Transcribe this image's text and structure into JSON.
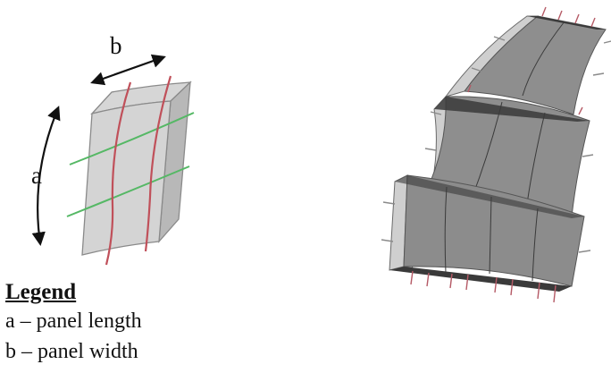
{
  "diagram": {
    "dimension_labels": {
      "a": "a",
      "b": "b"
    },
    "legend": {
      "title": "Legend",
      "items": [
        "a – panel length",
        "b – panel width"
      ]
    },
    "colors": {
      "panel_fill": "#c9c9c9",
      "panel_edge": "#8a8a8a",
      "rebar_red": "#c0505a",
      "rebar_green": "#55b865",
      "arrow": "#111111",
      "assembly_fill": "#8c8c8c",
      "assembly_dark": "#3a3a3a",
      "assembly_light": "#bdbdbd"
    }
  }
}
